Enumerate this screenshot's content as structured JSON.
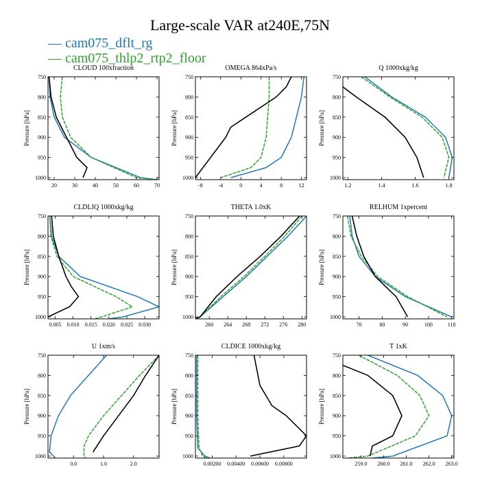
{
  "title": "Large-scale VAR at240E,75N",
  "legend": [
    {
      "name": "cam075_dflt_rg",
      "prefix": "— ",
      "color": "#1f77b4"
    },
    {
      "name": "cam075_thlp2_rtp2_floor",
      "prefix": "— ",
      "color": "#2ca02c"
    }
  ],
  "ylabel": "Pressure [hPa]",
  "yticks": [
    750,
    800,
    850,
    900,
    950,
    1000
  ],
  "series_colors": [
    "#1f77b4",
    "#2ca02c",
    "#000000"
  ],
  "chart_data": [
    {
      "type": "line",
      "title": "CLOUD  100xfraction",
      "xlim": [
        17,
        71
      ],
      "ylim": [
        1005,
        750
      ],
      "xticks": [
        20,
        30,
        40,
        50,
        60,
        70
      ],
      "xticklabels": [
        "20",
        "30",
        "40",
        "50",
        "60",
        "70"
      ],
      "series": [
        {
          "p": [
            750,
            800,
            850,
            900,
            950,
            1000,
            1005
          ],
          "x": [
            17.5,
            18,
            20,
            25,
            38,
            62,
            70
          ]
        },
        {
          "p": [
            750,
            800,
            850,
            900,
            950,
            1000,
            1005
          ],
          "x": [
            24,
            23,
            24,
            28,
            38,
            60,
            70
          ]
        },
        {
          "p": [
            1000,
            975,
            950,
            900,
            850,
            800,
            775,
            750
          ],
          "x": [
            34,
            36,
            31,
            26,
            21,
            18.5,
            18,
            17.5
          ]
        }
      ]
    },
    {
      "type": "line",
      "title": "OMEGA  864xPa/s",
      "xlim": [
        -9,
        13
      ],
      "ylim": [
        1005,
        750
      ],
      "xticks": [
        -8,
        -4,
        0,
        4,
        8,
        12
      ],
      "xticklabels": [
        "-8",
        "-4",
        "0",
        "4",
        "8",
        "12"
      ],
      "series": [
        {
          "p": [
            750,
            800,
            850,
            900,
            950,
            975,
            1000
          ],
          "x": [
            12.5,
            12,
            11,
            10,
            8,
            5,
            -2
          ]
        },
        {
          "p": [
            750,
            800,
            850,
            900,
            950,
            975,
            1000
          ],
          "x": [
            5.6,
            5.6,
            5.3,
            5,
            4,
            2,
            -4
          ]
        },
        {
          "p": [
            1000,
            950,
            900,
            875,
            850,
            800,
            775,
            750
          ],
          "x": [
            -9,
            -6,
            -3,
            -2,
            1,
            7,
            9,
            10
          ]
        }
      ]
    },
    {
      "type": "line",
      "title": "Q  1000xkg/kg",
      "xlim": [
        1.17,
        1.83
      ],
      "ylim": [
        1005,
        750
      ],
      "xticks": [
        1.2,
        1.4,
        1.6,
        1.8
      ],
      "xticklabels": [
        "1.2",
        "1.4",
        "1.6",
        "1.8"
      ],
      "series": [
        {
          "p": [
            750,
            800,
            850,
            900,
            950,
            1000
          ],
          "x": [
            1.3,
            1.46,
            1.66,
            1.78,
            1.82,
            1.8
          ]
        },
        {
          "p": [
            750,
            800,
            850,
            900,
            950,
            1000
          ],
          "x": [
            1.28,
            1.45,
            1.64,
            1.76,
            1.8,
            1.77
          ]
        },
        {
          "p": [
            775,
            800,
            850,
            900,
            950,
            1000
          ],
          "x": [
            1.17,
            1.25,
            1.42,
            1.54,
            1.61,
            1.65
          ]
        }
      ]
    },
    {
      "type": "line",
      "title": "CLDLIQ  1000xkg/kg",
      "xlim": [
        0.003,
        0.034
      ],
      "ylim": [
        1005,
        750
      ],
      "xticks": [
        0.005,
        0.01,
        0.015,
        0.02,
        0.025,
        0.03
      ],
      "xticklabels": [
        "0.005",
        "0.010",
        "0.015",
        "0.020",
        "0.025",
        "0.030"
      ],
      "series": [
        {
          "p": [
            750,
            800,
            850,
            900,
            950,
            975,
            1000,
            1005
          ],
          "x": [
            0.0035,
            0.004,
            0.006,
            0.012,
            0.028,
            0.034,
            0.024,
            0.02
          ]
        },
        {
          "p": [
            750,
            800,
            850,
            900,
            950,
            975,
            1000,
            1005
          ],
          "x": [
            0.0035,
            0.0038,
            0.0055,
            0.01,
            0.022,
            0.0265,
            0.018,
            0.016
          ]
        },
        {
          "p": [
            1000,
            975,
            950,
            925,
            900,
            850,
            800,
            750
          ],
          "x": [
            0.003,
            0.009,
            0.0115,
            0.0095,
            0.008,
            0.006,
            0.0045,
            0.004
          ]
        }
      ]
    },
    {
      "type": "line",
      "title": "THETA  1.0xK",
      "xlim": [
        257,
        281
      ],
      "ylim": [
        1005,
        750
      ],
      "xticks": [
        260,
        264,
        268,
        272,
        276,
        280
      ],
      "xticklabels": [
        "260",
        "264",
        "268",
        "272",
        "276",
        "280"
      ],
      "series": [
        {
          "p": [
            750,
            800,
            850,
            900,
            950,
            1000,
            1005
          ],
          "x": [
            281,
            277,
            272.5,
            268,
            263,
            258,
            257
          ]
        },
        {
          "p": [
            750,
            800,
            850,
            900,
            950,
            1000,
            1005
          ],
          "x": [
            280,
            276.3,
            272,
            267.5,
            262.5,
            258,
            257
          ]
        },
        {
          "p": [
            750,
            800,
            850,
            900,
            950,
            1000,
            1005
          ],
          "x": [
            279.5,
            275.5,
            271,
            266,
            261.5,
            258,
            257
          ]
        }
      ]
    },
    {
      "type": "line",
      "title": "RELHUM  1xpercent",
      "xlim": [
        63,
        111
      ],
      "ylim": [
        1005,
        750
      ],
      "xticks": [
        70,
        80,
        90,
        100,
        110
      ],
      "xticklabels": [
        "70",
        "80",
        "90",
        "100",
        "110"
      ],
      "series": [
        {
          "p": [
            750,
            800,
            850,
            900,
            950,
            1000
          ],
          "x": [
            66,
            67,
            70,
            77,
            90,
            110
          ]
        },
        {
          "p": [
            750,
            800,
            850,
            900,
            950,
            1000
          ],
          "x": [
            65,
            66.5,
            71,
            78,
            91,
            108
          ]
        },
        {
          "p": [
            750,
            800,
            850,
            900,
            950,
            1000
          ],
          "x": [
            67,
            69,
            72,
            77,
            86,
            91
          ]
        }
      ]
    },
    {
      "type": "line",
      "title": "U  1xm/s",
      "xlim": [
        -0.85,
        2.85
      ],
      "ylim": [
        1005,
        750
      ],
      "xticks": [
        0.0,
        1.0,
        2.0
      ],
      "xticklabels": [
        "0.0",
        "1.0",
        "2.0"
      ],
      "series": [
        {
          "p": [
            750,
            800,
            850,
            900,
            950,
            990,
            1005
          ],
          "x": [
            1.1,
            0.5,
            -0.1,
            -0.5,
            -0.75,
            -0.8,
            -0.6
          ]
        },
        {
          "p": [
            750,
            800,
            850,
            900,
            950,
            975,
            1000,
            1005
          ],
          "x": [
            2.85,
            2.2,
            1.6,
            1.0,
            0.5,
            0.35,
            0.35,
            0.4
          ]
        },
        {
          "p": [
            750,
            800,
            850,
            900,
            950,
            990
          ],
          "x": [
            2.85,
            2.4,
            2.0,
            1.5,
            1.0,
            0.65
          ]
        }
      ]
    },
    {
      "type": "line",
      "title": "CLDICE  1000xkg/kg",
      "xlim": [
        0.0006,
        0.0099
      ],
      "ylim": [
        1005,
        750
      ],
      "xticks": [
        0.002,
        0.004,
        0.006,
        0.008
      ],
      "xticklabels": [
        "0.00200",
        "0.00400",
        "0.00600",
        "0.00800"
      ],
      "series": [
        {
          "p": [
            750,
            900,
            980,
            1000,
            1005
          ],
          "x": [
            0.0007,
            0.0007,
            0.0008,
            0.0014,
            0.0018
          ]
        },
        {
          "p": [
            750,
            900,
            980,
            1000,
            1005
          ],
          "x": [
            0.0008,
            0.0008,
            0.0009,
            0.0012,
            0.0015
          ]
        },
        {
          "p": [
            750,
            825,
            875,
            900,
            950,
            975,
            1000
          ],
          "x": [
            0.0055,
            0.006,
            0.007,
            0.0082,
            0.0099,
            0.0093,
            0.0052
          ]
        }
      ]
    },
    {
      "type": "line",
      "title": "T  1xK",
      "xlim": [
        258.2,
        263.1
      ],
      "ylim": [
        1005,
        750
      ],
      "xticks": [
        259.0,
        260.0,
        261.0,
        262.0,
        263.0
      ],
      "xticklabels": [
        "259.0",
        "260.0",
        "261.0",
        "262.0",
        "263.0"
      ],
      "series": [
        {
          "p": [
            750,
            800,
            850,
            900,
            950,
            1000,
            1005
          ],
          "x": [
            259.3,
            261.5,
            262.6,
            263.0,
            262.8,
            260.4,
            259.5
          ]
        },
        {
          "p": [
            750,
            800,
            850,
            900,
            950,
            1000,
            1005
          ],
          "x": [
            258.9,
            260.6,
            261.6,
            262.0,
            261.4,
            259.3,
            258.4
          ]
        },
        {
          "p": [
            775,
            800,
            850,
            900,
            950,
            975,
            1000
          ],
          "x": [
            258.2,
            259.3,
            260.4,
            260.8,
            260.4,
            259.5,
            259.4
          ]
        }
      ]
    }
  ]
}
